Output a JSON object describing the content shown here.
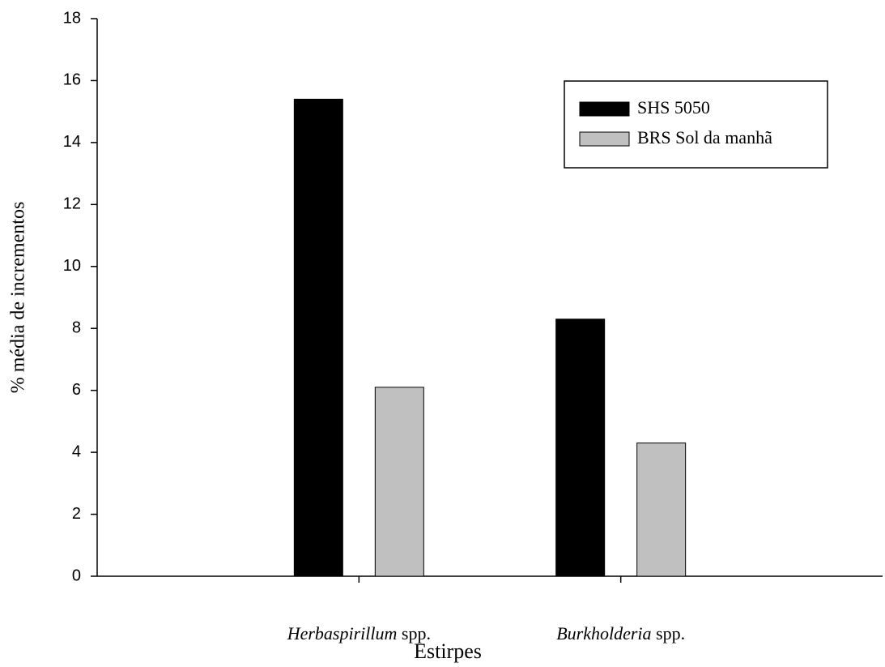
{
  "chart_data": {
    "type": "bar",
    "x_label": "Estirpes",
    "y_label": "% média de incrementos",
    "categories": [
      "Herbaspirillum spp.",
      "Burkholderia spp."
    ],
    "series": [
      {
        "name": "SHS 5050",
        "color": "#000000",
        "values": [
          15.4,
          8.3
        ]
      },
      {
        "name": "BRS Sol da manhã",
        "color": "#c0c0c0",
        "values": [
          6.1,
          4.3
        ]
      }
    ],
    "ylim": [
      0,
      18
    ],
    "yticks": [
      0,
      2,
      4,
      6,
      8,
      10,
      12,
      14,
      16,
      18
    ],
    "grid": false,
    "legend": "upper right"
  }
}
